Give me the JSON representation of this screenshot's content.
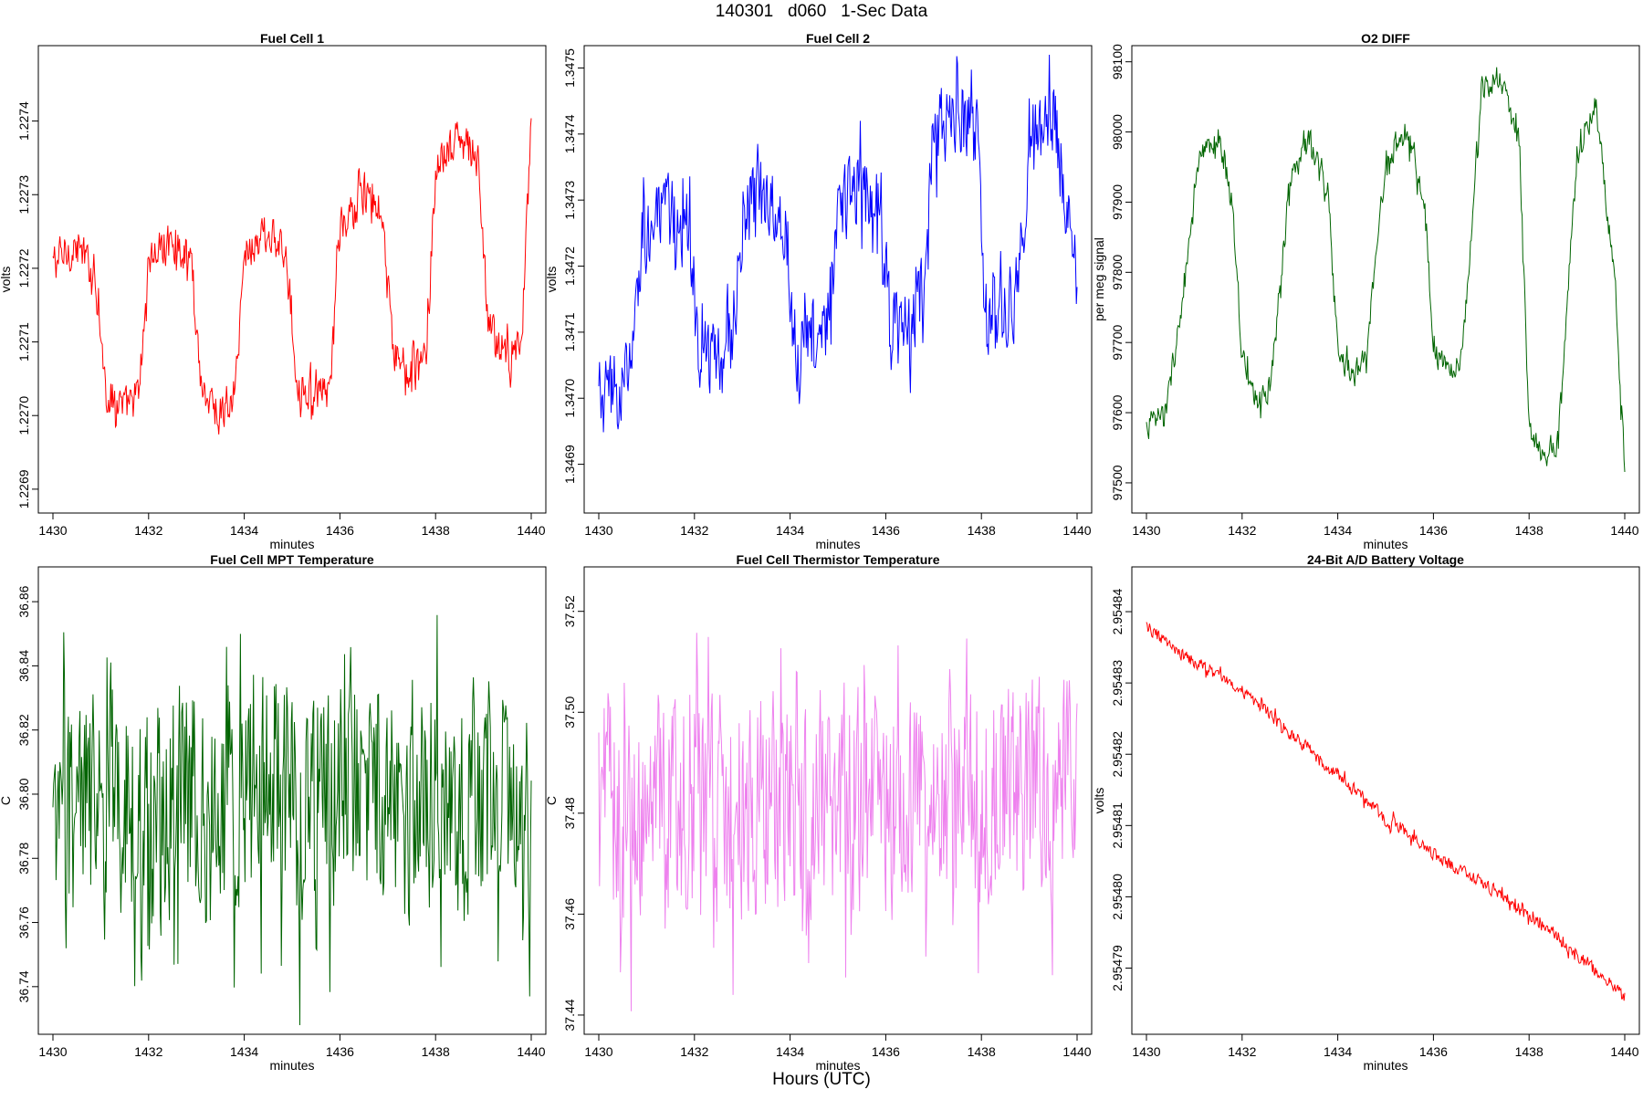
{
  "figure": {
    "title": "140301   d060   1-Sec Data",
    "xlabel": "Hours (UTC)"
  },
  "chart_data": [
    {
      "type": "line",
      "title": "Fuel Cell 1",
      "xlabel": "minutes",
      "ylabel": "volts",
      "xlim": [
        1430,
        1440
      ],
      "xticks": [
        1430,
        1432,
        1434,
        1436,
        1438,
        1440
      ],
      "ylim": [
        1.22688,
        1.22749
      ],
      "yticks": [
        "1.2269",
        "1.2270",
        "1.2271",
        "1.2272",
        "1.2273",
        "1.2274"
      ],
      "color": "#ff0000",
      "series": [
        {
          "name": "Fuel Cell 1",
          "x": [
            1430.0,
            1430.5,
            1430.9,
            1431.1,
            1431.5,
            1431.8,
            1432.0,
            1432.5,
            1432.9,
            1433.1,
            1433.5,
            1433.8,
            1434.0,
            1434.5,
            1434.9,
            1435.1,
            1435.5,
            1435.8,
            1436.0,
            1436.5,
            1436.9,
            1437.1,
            1437.5,
            1437.8,
            1438.0,
            1438.5,
            1438.9,
            1439.1,
            1439.5,
            1439.8,
            1440.0
          ],
          "y": [
            1.22721,
            1.22723,
            1.22719,
            1.22703,
            1.22701,
            1.22703,
            1.22721,
            1.22724,
            1.22721,
            1.22704,
            1.227,
            1.22702,
            1.22722,
            1.22725,
            1.22721,
            1.22705,
            1.22702,
            1.22704,
            1.22725,
            1.2273,
            1.22726,
            1.22709,
            1.22705,
            1.22708,
            1.22733,
            1.22738,
            1.22734,
            1.22712,
            1.22708,
            1.2271,
            1.2274
          ]
        }
      ]
    },
    {
      "type": "line",
      "title": "Fuel Cell 2",
      "xlabel": "minutes",
      "ylabel": "volts",
      "xlim": [
        1430,
        1440
      ],
      "xticks": [
        1430,
        1432,
        1434,
        1436,
        1438,
        1440
      ],
      "ylim": [
        1.34684,
        1.34752
      ],
      "yticks": [
        "1.3469",
        "1.3470",
        "1.3471",
        "1.3472",
        "1.3473",
        "1.3474",
        "1.3475"
      ],
      "color": "#0000ff",
      "series": [
        {
          "name": "Fuel Cell 2",
          "x": [
            1430.0,
            1430.5,
            1430.7,
            1430.9,
            1431.5,
            1431.9,
            1432.1,
            1432.5,
            1432.8,
            1433.0,
            1433.5,
            1433.9,
            1434.1,
            1434.5,
            1434.8,
            1435.0,
            1435.5,
            1435.9,
            1436.1,
            1436.5,
            1436.8,
            1437.0,
            1437.5,
            1437.9,
            1438.1,
            1438.5,
            1438.8,
            1439.0,
            1439.5,
            1439.9,
            1440.0
          ],
          "y": [
            1.347,
            1.34701,
            1.34705,
            1.34725,
            1.34728,
            1.34725,
            1.34706,
            1.34707,
            1.34709,
            1.34728,
            1.34731,
            1.34728,
            1.34707,
            1.34708,
            1.34711,
            1.3473,
            1.34732,
            1.34729,
            1.3471,
            1.3471,
            1.34718,
            1.3474,
            1.34744,
            1.3474,
            1.34712,
            1.34711,
            1.34718,
            1.3474,
            1.34743,
            1.34725,
            1.34717
          ]
        }
      ]
    },
    {
      "type": "line",
      "title": "O2 DIFF",
      "xlabel": "minutes",
      "ylabel": "per meg signal",
      "xlim": [
        1430,
        1440
      ],
      "xticks": [
        1430,
        1432,
        1434,
        1436,
        1438,
        1440
      ],
      "ylim": [
        97470,
        98110
      ],
      "yticks": [
        "97500",
        "97600",
        "97700",
        "97800",
        "97900",
        "98000",
        "98100"
      ],
      "color": "#006400",
      "series": [
        {
          "name": "O2 DIFF",
          "x": [
            1430.0,
            1430.4,
            1430.8,
            1431.1,
            1431.5,
            1431.8,
            1432.0,
            1432.3,
            1432.6,
            1433.0,
            1433.4,
            1433.8,
            1434.0,
            1434.3,
            1434.6,
            1435.0,
            1435.4,
            1435.8,
            1436.0,
            1436.3,
            1436.6,
            1437.0,
            1437.4,
            1437.8,
            1438.0,
            1438.3,
            1438.6,
            1439.0,
            1439.4,
            1439.8,
            1440.0
          ],
          "y": [
            97580,
            97600,
            97780,
            97960,
            97990,
            97900,
            97680,
            97610,
            97640,
            97930,
            97990,
            97900,
            97690,
            97650,
            97680,
            97960,
            98000,
            97910,
            97700,
            97660,
            97680,
            98060,
            98080,
            97980,
            97580,
            97540,
            97560,
            97960,
            98040,
            97780,
            97510
          ]
        }
      ]
    },
    {
      "type": "line",
      "title": "Fuel Cell MPT Temperature",
      "xlabel": "minutes",
      "ylabel": "C",
      "xlim": [
        1430,
        1440
      ],
      "xticks": [
        1430,
        1432,
        1434,
        1436,
        1438,
        1440
      ],
      "ylim": [
        36.728,
        36.868
      ],
      "yticks": [
        "36.74",
        "36.76",
        "36.78",
        "36.80",
        "36.82",
        "36.84",
        "36.86"
      ],
      "color": "#006400",
      "series": [
        {
          "name": "Fuel Cell MPT Temperature",
          "x": [
            1430.0,
            1430.5,
            1431.0,
            1431.5,
            1432.0,
            1432.5,
            1433.0,
            1433.5,
            1434.0,
            1434.5,
            1435.0,
            1435.5,
            1436.0,
            1436.5,
            1437.0,
            1437.5,
            1438.0,
            1438.5,
            1439.0,
            1439.5,
            1440.0
          ],
          "y": [
            36.78,
            36.8,
            36.79,
            36.8,
            36.79,
            36.8,
            36.8,
            36.79,
            36.8,
            36.8,
            36.8,
            36.79,
            36.8,
            36.8,
            36.79,
            36.8,
            36.8,
            36.79,
            36.8,
            36.8,
            36.79
          ]
        }
      ]
    },
    {
      "type": "line",
      "title": "Fuel Cell Thermistor Temperature",
      "xlabel": "minutes",
      "ylabel": "C",
      "xlim": [
        1430,
        1440
      ],
      "xticks": [
        1430,
        1432,
        1434,
        1436,
        1438,
        1440
      ],
      "ylim": [
        37.438,
        37.527
      ],
      "yticks": [
        "37.44",
        "37.46",
        "37.48",
        "37.50",
        "37.52"
      ],
      "color": "#ee82ee",
      "series": [
        {
          "name": "Fuel Cell Thermistor Temperature",
          "x": [
            1430.0,
            1430.5,
            1431.0,
            1431.5,
            1432.0,
            1432.5,
            1433.0,
            1433.5,
            1434.0,
            1434.5,
            1435.0,
            1435.5,
            1436.0,
            1436.5,
            1437.0,
            1437.5,
            1438.0,
            1438.5,
            1439.0,
            1439.5,
            1440.0
          ],
          "y": [
            37.485,
            37.479,
            37.48,
            37.48,
            37.479,
            37.48,
            37.481,
            37.481,
            37.482,
            37.481,
            37.483,
            37.482,
            37.483,
            37.482,
            37.484,
            37.483,
            37.485,
            37.484,
            37.485,
            37.484,
            37.486
          ]
        }
      ]
    },
    {
      "type": "line",
      "title": "24-Bit A/D Battery Voltage",
      "xlabel": "minutes",
      "ylabel": "volts",
      "xlim": [
        1430,
        1440
      ],
      "xticks": [
        1430,
        1432,
        1434,
        1436,
        1438,
        1440
      ],
      "ylim": [
        2.954782,
        2.954845
      ],
      "yticks": [
        "2.95479",
        "2.95480",
        "2.95481",
        "2.95482",
        "2.95483",
        "2.95484"
      ],
      "color": "#ff0000",
      "series": [
        {
          "name": "24-Bit A/D Battery Voltage",
          "x": [
            1430.0,
            1430.5,
            1431.0,
            1431.5,
            1432.0,
            1432.5,
            1433.0,
            1433.5,
            1434.0,
            1434.5,
            1435.0,
            1435.5,
            1436.0,
            1436.5,
            1437.0,
            1437.5,
            1438.0,
            1438.5,
            1439.0,
            1439.5,
            1440.0
          ],
          "y": [
            2.954838,
            2.954835,
            2.954833,
            2.954831,
            2.954829,
            2.954826,
            2.954823,
            2.95482,
            2.954817,
            2.954814,
            2.954811,
            2.954809,
            2.954806,
            2.954804,
            2.954802,
            2.9548,
            2.954797,
            2.954795,
            2.954792,
            2.954789,
            2.954786
          ]
        }
      ]
    }
  ]
}
